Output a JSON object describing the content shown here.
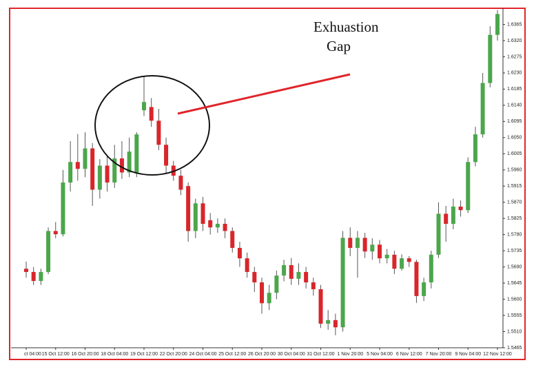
{
  "chart_data": {
    "type": "candlestick",
    "annotations": [
      "Exhuastion",
      "Gap"
    ],
    "up_color": "#4ca64c",
    "down_color": "#d8262b",
    "ylim": [
      1.5465,
      1.641
    ],
    "yticks": [
      1.6365,
      {
        "value": 1.632,
        "label": "1.6320"
      },
      1.6275,
      {
        "value": 1.623,
        "label": "1.6230"
      },
      1.6185,
      {
        "value": 1.614,
        "label": "1.6140"
      },
      1.6095,
      {
        "value": 1.605,
        "label": "1.6050"
      },
      1.6005,
      {
        "value": 1.596,
        "label": "1.5960"
      },
      1.5915,
      {
        "value": 1.587,
        "label": "1.5870"
      },
      1.5825,
      {
        "value": 1.578,
        "label": "1.5780"
      },
      1.5735,
      {
        "value": 1.569,
        "label": "1.5690"
      },
      1.5645,
      {
        "value": 1.56,
        "label": "1.5600"
      },
      1.5555,
      {
        "value": 1.551,
        "label": "1.5510"
      },
      1.5465
    ],
    "categories": [
      "ct 04:00",
      null,
      null,
      null,
      "15 Oct 12:00",
      null,
      null,
      null,
      "16 Oct 20:00",
      null,
      null,
      null,
      "18 Oct 04:00",
      null,
      null,
      null,
      "19 Oct 12:00",
      null,
      null,
      null,
      "22 Oct 20:00",
      null,
      null,
      null,
      "24 Oct 04:00",
      null,
      null,
      null,
      "25 Oct 12:00",
      null,
      null,
      null,
      "26 Oct 20:00",
      null,
      null,
      null,
      "30 Oct 04:00",
      null,
      null,
      null,
      "31 Oct 12:00",
      null,
      null,
      null,
      "1 Nov 20:00",
      null,
      null,
      null,
      "5 Nov 04:00",
      null,
      null,
      null,
      "6 Nov 12:00",
      null,
      null,
      null,
      "7 Nov 20:00",
      null,
      null,
      null,
      "9 Nov 04:00",
      null,
      null,
      null,
      "12 Nov 12:00"
    ],
    "open": [
      1.5685,
      1.5676,
      1.5651,
      1.5676,
      1.579,
      1.5781,
      1.5925,
      1.5982,
      1.5963,
      1.602,
      1.5905,
      1.5972,
      1.5925,
      1.5992,
      1.5953,
      1.5953,
      1.6126,
      1.6135,
      1.6097,
      1.603,
      1.5972,
      1.5944,
      1.5915,
      1.579,
      1.5867,
      1.582,
      1.58,
      1.581,
      1.579,
      1.5743,
      1.5714,
      1.5676,
      1.5647,
      1.5589,
      1.5618,
      1.5666,
      1.5695,
      1.5657,
      1.5676,
      1.5647,
      1.5628,
      1.5532,
      1.5542,
      1.5522,
      1.5771,
      1.5743,
      1.5771,
      1.5733,
      1.5752,
      1.5714,
      1.5724,
      1.5685,
      1.5714,
      1.5704,
      1.5609,
      1.5647,
      1.5724,
      1.5838,
      1.581,
      1.5858,
      1.5848,
      1.5982,
      1.6059,
      1.6202,
      1.6336
    ],
    "high": [
      1.5705,
      1.569,
      1.5685,
      1.58,
      1.5815,
      1.596,
      1.604,
      1.606,
      1.6065,
      1.6035,
      1.599,
      1.6,
      1.603,
      1.604,
      1.605,
      1.6065,
      1.622,
      1.616,
      1.613,
      1.605,
      1.5985,
      1.596,
      1.5925,
      1.588,
      1.5885,
      1.584,
      1.5825,
      1.5825,
      1.58,
      1.576,
      1.573,
      1.569,
      1.566,
      1.564,
      1.568,
      1.571,
      1.5715,
      1.57,
      1.569,
      1.566,
      1.564,
      1.557,
      1.556,
      1.579,
      1.58,
      1.579,
      1.5785,
      1.577,
      1.5765,
      1.574,
      1.5735,
      1.5725,
      1.572,
      1.571,
      1.566,
      1.5735,
      1.587,
      1.586,
      1.588,
      1.5875,
      1.5995,
      1.608,
      1.623,
      1.636,
      1.6405
    ],
    "low": [
      1.566,
      1.564,
      1.564,
      1.567,
      1.577,
      1.5775,
      1.59,
      1.593,
      1.594,
      1.586,
      1.588,
      1.59,
      1.591,
      1.5935,
      1.594,
      1.594,
      1.611,
      1.608,
      1.6015,
      1.595,
      1.593,
      1.589,
      1.576,
      1.577,
      1.579,
      1.578,
      1.5785,
      1.577,
      1.573,
      1.569,
      1.566,
      1.562,
      1.556,
      1.557,
      1.56,
      1.565,
      1.564,
      1.564,
      1.563,
      1.561,
      1.552,
      1.5515,
      1.55,
      1.551,
      1.572,
      1.566,
      1.5715,
      1.571,
      1.57,
      1.57,
      1.567,
      1.568,
      1.569,
      1.559,
      1.5595,
      1.563,
      1.5715,
      1.576,
      1.5795,
      1.583,
      1.584,
      1.597,
      1.605,
      1.619,
      1.632
    ],
    "close": [
      1.5676,
      1.5651,
      1.5676,
      1.579,
      1.5781,
      1.5925,
      1.5982,
      1.5963,
      1.602,
      1.5905,
      1.5972,
      1.5925,
      1.5992,
      1.5953,
      1.6011,
      1.6059,
      1.6149,
      1.6097,
      1.603,
      1.5972,
      1.5944,
      1.5905,
      1.579,
      1.5867,
      1.581,
      1.58,
      1.581,
      1.579,
      1.5743,
      1.5714,
      1.5676,
      1.5647,
      1.5589,
      1.5618,
      1.5666,
      1.5695,
      1.5657,
      1.5676,
      1.5647,
      1.5628,
      1.5532,
      1.5542,
      1.5522,
      1.5771,
      1.5743,
      1.5771,
      1.5733,
      1.5752,
      1.5714,
      1.5724,
      1.5685,
      1.5714,
      1.5704,
      1.5609,
      1.5647,
      1.5724,
      1.5838,
      1.581,
      1.5858,
      1.5848,
      1.5982,
      1.6059,
      1.6202,
      1.6336,
      1.6394
    ]
  }
}
